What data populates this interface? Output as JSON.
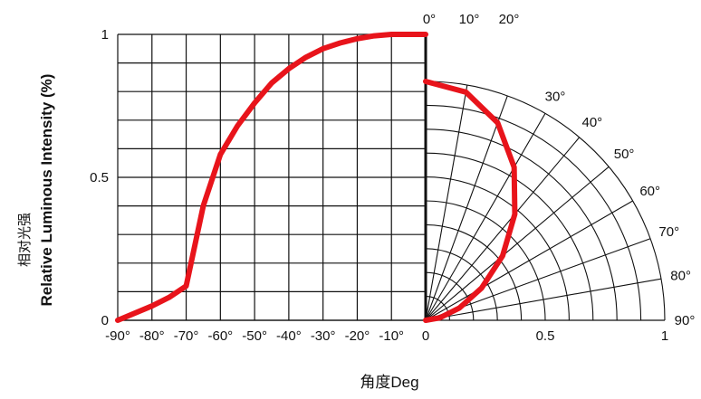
{
  "chart_data": {
    "type": "line",
    "title": "",
    "ylabel_cn": "相对光强",
    "ylabel_en": "Relative Luminous Intensity (%)",
    "xlabel": "角度Deg",
    "ylim": [
      0,
      1
    ],
    "y_ticks": [
      "0",
      "0.5",
      "1"
    ],
    "x_tick_labels_left": [
      "-90°",
      "-80°",
      "-70°",
      "-60°",
      "-50°",
      "-40°",
      "-30°",
      "-20°",
      "-10°",
      "0"
    ],
    "x_tick_labels_right": [
      "0",
      "0.5",
      "1"
    ],
    "polar_angle_labels": [
      "0°",
      "10°",
      "20°",
      "30°",
      "40°",
      "50°",
      "60°",
      "70°",
      "80°",
      "90°"
    ],
    "series": [
      {
        "color": "#e8141b",
        "x": [
          -90,
          -80,
          -75,
          -70,
          -65,
          -60,
          -55,
          -50,
          -45,
          -40,
          -35,
          -30,
          -25,
          -20,
          -15,
          -10,
          -5,
          0
        ],
        "y": [
          0,
          0.05,
          0.08,
          0.12,
          0.4,
          0.58,
          0.68,
          0.76,
          0.83,
          0.88,
          0.92,
          0.95,
          0.97,
          0.985,
          0.995,
          1.0,
          1.0,
          1.0
        ],
        "polar_angle": [
          0,
          10,
          20,
          30,
          40,
          50,
          60,
          70,
          80,
          90
        ],
        "polar_r": [
          1.0,
          0.97,
          0.88,
          0.74,
          0.58,
          0.42,
          0.27,
          0.15,
          0.06,
          0.0
        ]
      }
    ]
  }
}
